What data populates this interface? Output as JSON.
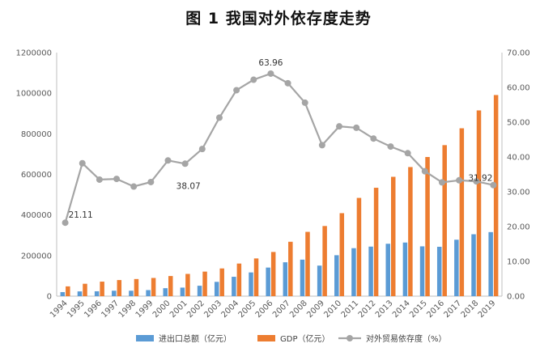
{
  "title": "图 1    我国对外依存度走势",
  "colors": {
    "trade": "#5B9BD5",
    "gdp": "#ED7D31",
    "ratio": "#A5A5A5",
    "axis": "#BFBFBF",
    "text": "#595959"
  },
  "chart_data": {
    "type": "bar+line",
    "categories": [
      "1994",
      "1995",
      "1996",
      "1997",
      "1998",
      "1999",
      "2000",
      "2001",
      "2002",
      "2003",
      "2004",
      "2005",
      "2006",
      "2007",
      "2008",
      "2009",
      "2010",
      "2011",
      "2012",
      "2013",
      "2014",
      "2015",
      "2016",
      "2017",
      "2018",
      "2019"
    ],
    "left_axis": {
      "min": 0,
      "max": 1200000,
      "step": 200000,
      "tick_labels": [
        "0",
        "200000",
        "400000",
        "600000",
        "800000",
        "1000000",
        "1200000"
      ]
    },
    "right_axis": {
      "min": 0,
      "max": 70,
      "step": 10,
      "tick_labels": [
        "0.00",
        "10.00",
        "20.00",
        "30.00",
        "40.00",
        "50.00",
        "60.00",
        "70.00"
      ]
    },
    "series": [
      {
        "name": "进出口总额（亿元）",
        "type": "bar",
        "axis": "left",
        "values": [
          20000,
          23500,
          24100,
          26900,
          26800,
          29900,
          39300,
          42200,
          51400,
          70500,
          95500,
          116900,
          140900,
          166900,
          179900,
          150600,
          201700,
          236400,
          244200,
          258200,
          264200,
          245500,
          243300,
          278100,
          305000,
          315600
        ]
      },
      {
        "name": "GDP（亿元）",
        "type": "bar",
        "axis": "left",
        "values": [
          48200,
          61100,
          71600,
          79400,
          84400,
          89700,
          99200,
          109700,
          121000,
          136600,
          160700,
          185900,
          217700,
          268000,
          316800,
          345600,
          408900,
          484100,
          534100,
          588000,
          636100,
          685600,
          744100,
          827100,
          915200,
          990900
        ]
      },
      {
        "name": "对外贸易依存度（%）",
        "type": "line",
        "axis": "right",
        "values": [
          21.11,
          38.2,
          33.5,
          33.7,
          31.5,
          32.8,
          39.0,
          38.07,
          42.3,
          51.3,
          59.2,
          62.2,
          63.96,
          61.2,
          55.6,
          43.4,
          48.8,
          48.4,
          45.3,
          43.0,
          41.1,
          35.9,
          32.7,
          33.3,
          33.0,
          31.92
        ]
      }
    ],
    "data_labels": [
      {
        "series": 2,
        "index": 0,
        "text": "21.11"
      },
      {
        "series": 2,
        "index": 7,
        "text": "38.07"
      },
      {
        "series": 2,
        "index": 12,
        "text": "63.96"
      },
      {
        "series": 2,
        "index": 25,
        "text": "31.92"
      }
    ],
    "legend": [
      "进出口总额（亿元）",
      "GDP（亿元）",
      "对外贸易依存度（%）"
    ],
    "legend_position": "bottom"
  }
}
